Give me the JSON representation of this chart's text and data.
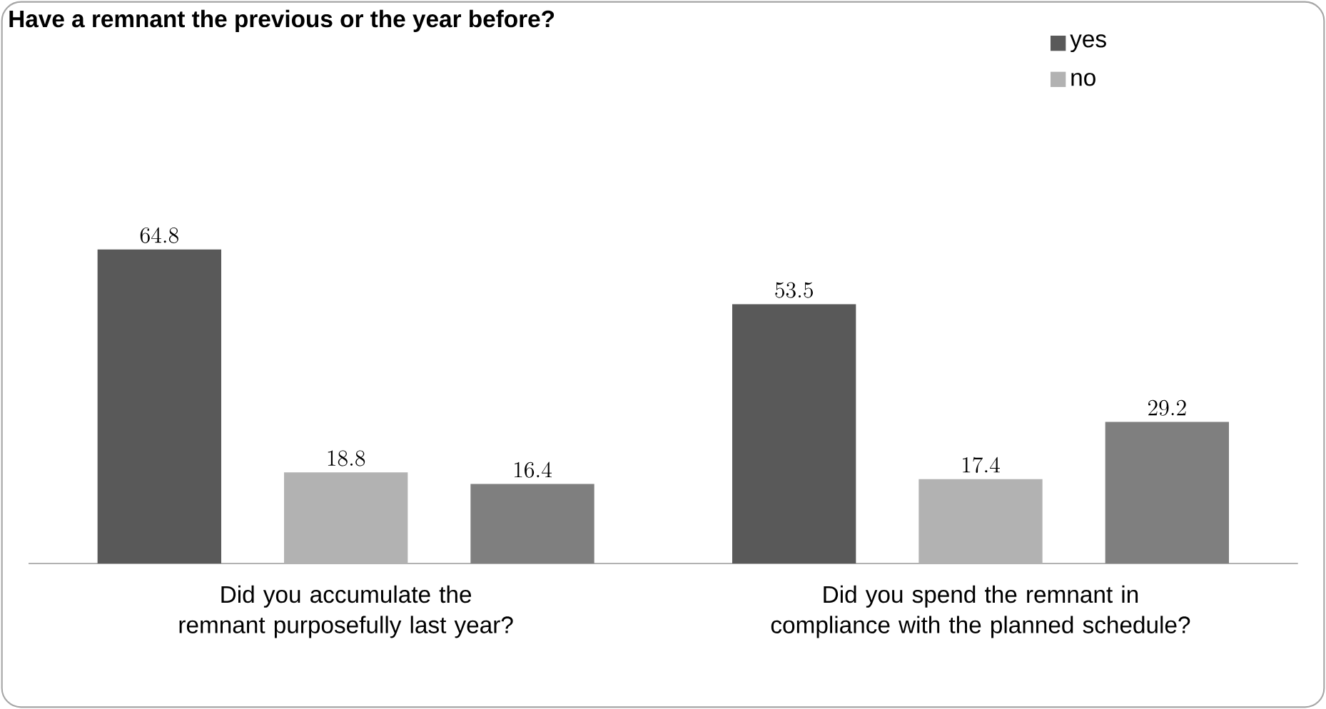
{
  "chart_data": {
    "type": "bar",
    "title": "Have a remnant the previous or the year before?",
    "categories": [
      "Did you accumulate the remnant purposefully last year?",
      "Did you spend the remnant in compliance with the planned schedule?"
    ],
    "series": [
      {
        "name": "yes",
        "color": "#595959",
        "values": [
          64.8,
          53.5
        ]
      },
      {
        "name": "no",
        "color": "#b2b2b2",
        "values": [
          18.8,
          17.4
        ]
      },
      {
        "color": "#7f7f7f",
        "values": [
          16.4,
          29.2
        ]
      }
    ],
    "data_labels": true,
    "legend": "top right"
  }
}
